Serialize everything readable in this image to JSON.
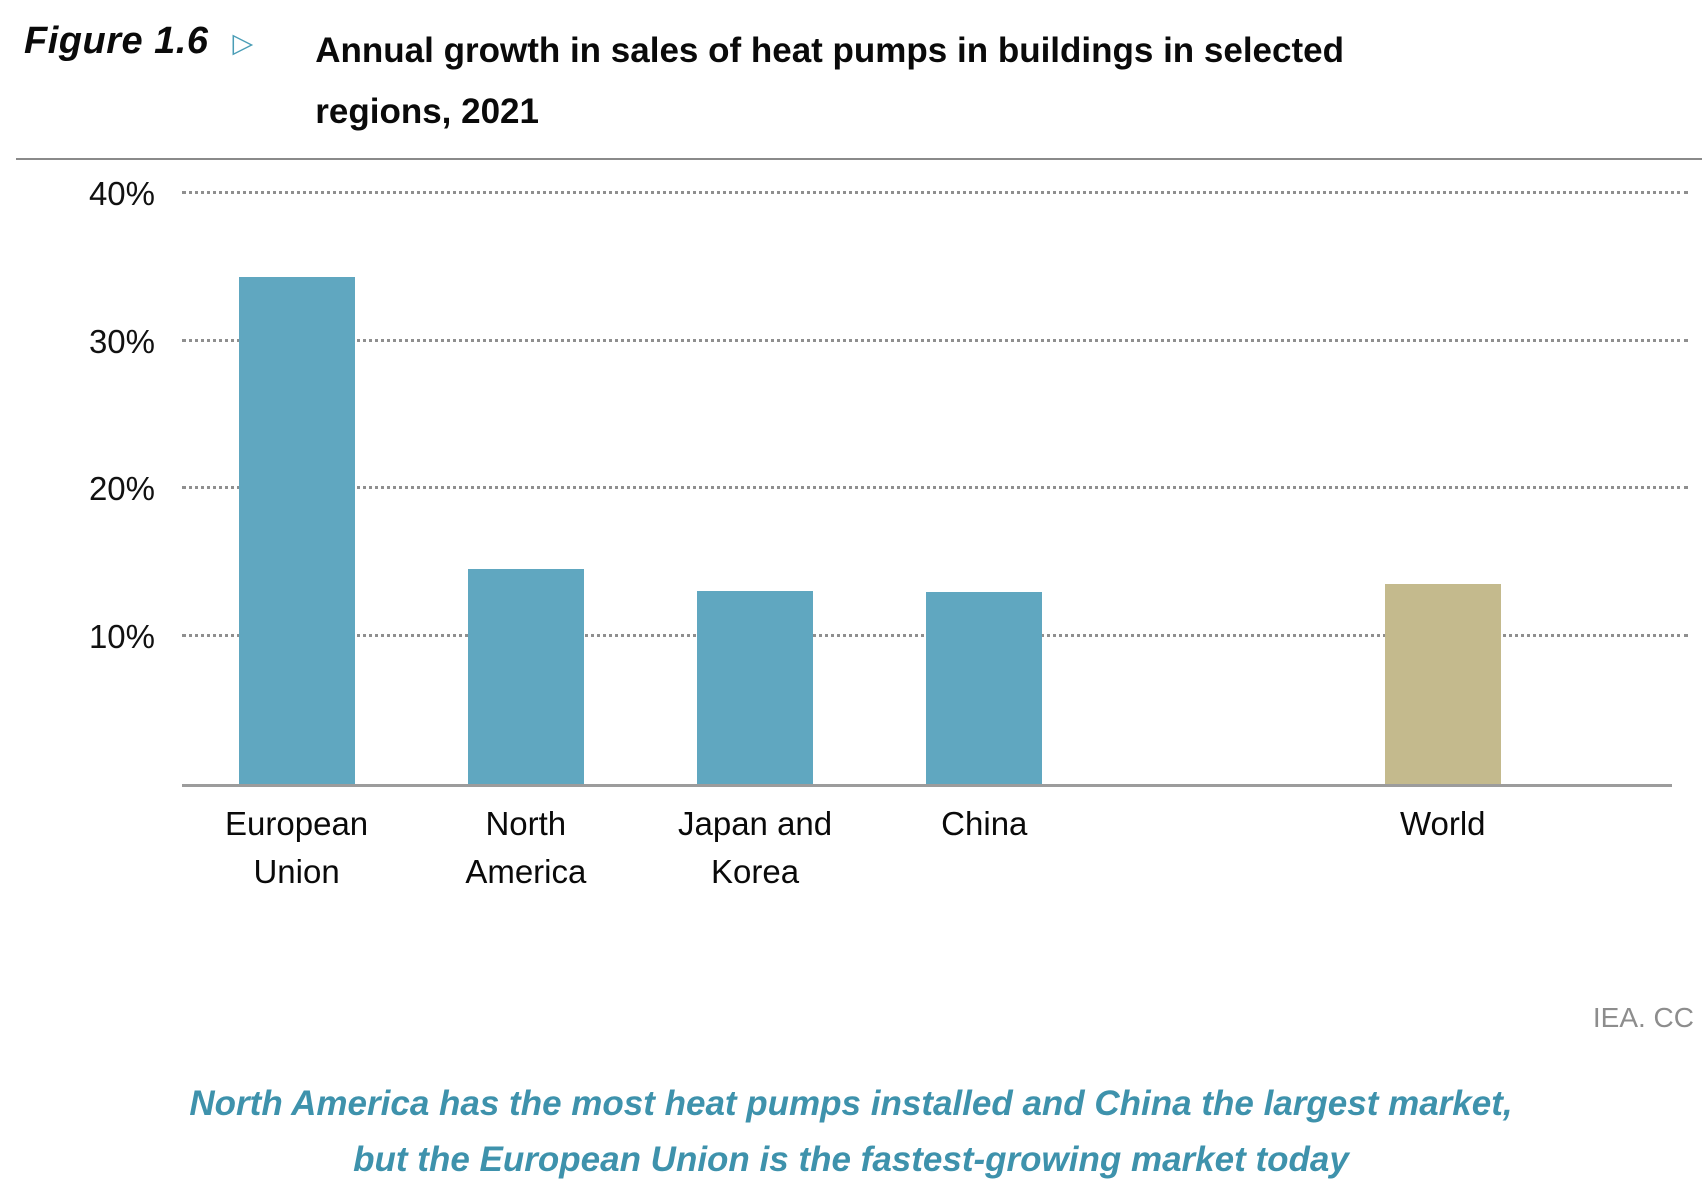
{
  "header": {
    "figure_label": "Figure 1.6",
    "arrow": "▷",
    "title_line1": "Annual growth in sales of heat pumps in buildings in selected",
    "title_line2": "regions, 2021"
  },
  "footer": {
    "credit": "IEA. CC",
    "caption_line1": "North America has the most heat pumps installed and China the largest market,",
    "caption_line2": "but the European Union is the fastest-growing market today"
  },
  "colors": {
    "accent_teal": "#4a9db6",
    "bar_teal": "#60a7c0",
    "bar_tan": "#c4ba8d",
    "caption_teal": "#3e92ac",
    "gridline_gray": "#8f8f8f"
  },
  "chart_data": {
    "type": "bar",
    "title": "Annual growth in sales of heat pumps in buildings in selected regions, 2021",
    "categories": [
      "European Union",
      "North America",
      "Japan and Korea",
      "China",
      "World"
    ],
    "values": [
      34.4,
      14.6,
      13.1,
      13.0,
      13.6
    ],
    "unit": "%",
    "ylabel": "",
    "yticks": [
      10,
      20,
      30,
      40
    ],
    "ylim": [
      0,
      42
    ],
    "grid": "horizontal-dotted",
    "legend": "none",
    "colors": [
      "#60a7c0",
      "#60a7c0",
      "#60a7c0",
      "#60a7c0",
      "#c4b a8d"
    ],
    "slots": [
      1,
      2,
      3,
      4,
      6
    ],
    "total_slots": 6.5,
    "bar_width_pct": 7.8
  }
}
